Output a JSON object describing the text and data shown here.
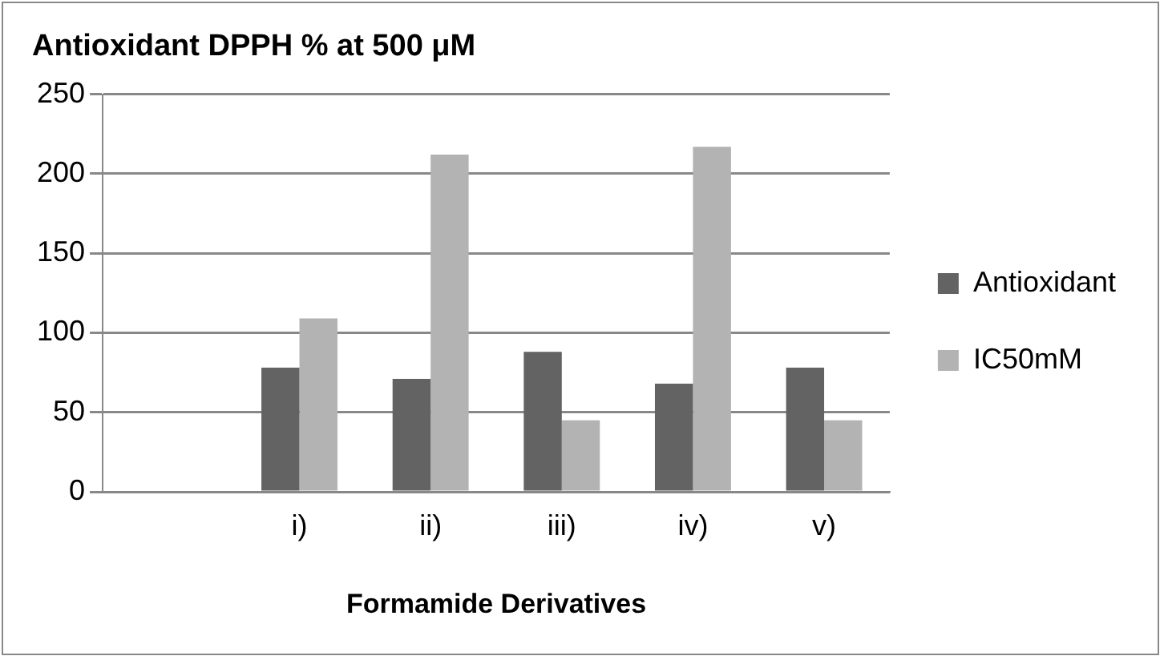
{
  "chart_data": {
    "type": "bar",
    "title": "Antioxidant DPPH % at 500 μM",
    "xlabel": "Formamide Derivatives",
    "categories": [
      null,
      "i)",
      "ii)",
      "iii)",
      "iv)",
      "v)"
    ],
    "series": [
      {
        "name": "Antioxidant",
        "color": "#636363",
        "values": [
          null,
          78,
          71,
          88,
          68,
          78
        ]
      },
      {
        "name": "IC50mM",
        "color": "#b3b3b3",
        "values": [
          null,
          109,
          212,
          45,
          217,
          45
        ]
      }
    ],
    "ylim": [
      0,
      250
    ],
    "yticks": [
      0,
      50,
      100,
      150,
      200,
      250
    ],
    "grid": "y",
    "legend": "right"
  }
}
